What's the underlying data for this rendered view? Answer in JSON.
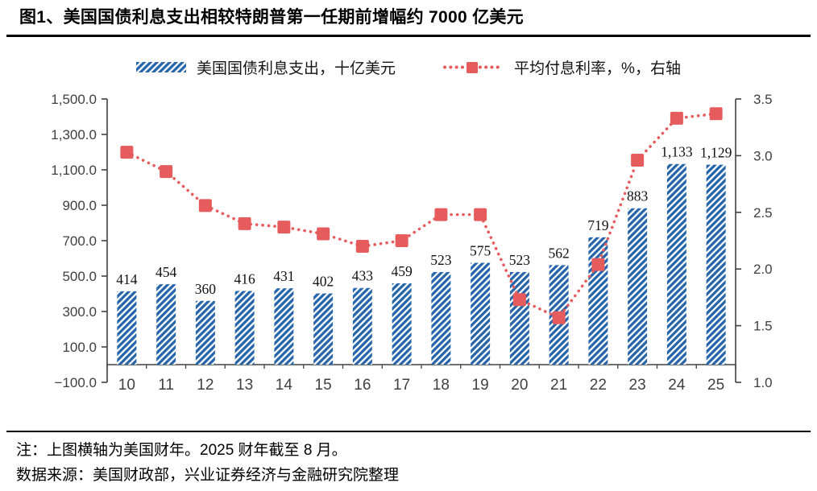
{
  "header": {
    "title": "图1、美国国债利息支出相较特朗普第一任期前增幅约 7000 亿美元"
  },
  "legend": {
    "bar_label": "美国国债利息支出，十亿美元",
    "line_label": "平均付息利率，%，右轴"
  },
  "chart_data": {
    "type": "bar+line combo, dual y-axis",
    "title": "图1、美国国债利息支出相较特朗普第一任期前增幅约 7000 亿美元",
    "x_axis_meaning": "美国财年",
    "categories": [
      "10",
      "11",
      "12",
      "13",
      "14",
      "15",
      "16",
      "17",
      "18",
      "19",
      "20",
      "21",
      "22",
      "23",
      "24",
      "25"
    ],
    "series": [
      {
        "name": "美国国债利息支出，十亿美元",
        "type": "bar",
        "axis": "left",
        "values": [
          414,
          454,
          360,
          416,
          431,
          402,
          433,
          459,
          523,
          575,
          523,
          562,
          719,
          883,
          1133,
          1129
        ],
        "value_labels": [
          "414",
          "454",
          "360",
          "416",
          "431",
          "402",
          "433",
          "459",
          "523",
          "575",
          "523",
          "562",
          "719",
          "883",
          "1,133",
          "1,129"
        ]
      },
      {
        "name": "平均付息利率，%，右轴",
        "type": "line",
        "axis": "right",
        "line_style": "dotted",
        "marker": "square",
        "values": [
          3.03,
          2.86,
          2.56,
          2.4,
          2.37,
          2.31,
          2.2,
          2.25,
          2.48,
          2.48,
          1.73,
          1.57,
          2.04,
          2.96,
          3.33,
          3.37
        ]
      }
    ],
    "left_axis": {
      "min": -100,
      "max": 1500,
      "step": 200,
      "tick_labels": [
        "−100.0",
        "100.0",
        "300.0",
        "500.0",
        "700.0",
        "900.0",
        "1,100.0",
        "1,300.0",
        "1,500.0"
      ]
    },
    "right_axis": {
      "min": 1.0,
      "max": 3.5,
      "step": 0.5,
      "tick_labels": [
        "1.0",
        "1.5",
        "2.0",
        "2.5",
        "3.0",
        "3.5"
      ]
    },
    "grid": "off",
    "legend_position": "top"
  },
  "footer": {
    "note": "注：上图横轴为美国财年。2025 财年截至 8 月。",
    "source": "数据来源：美国财政部，兴业证券经济与金融研究院整理"
  },
  "colors": {
    "bar_blue": "#2766ab",
    "line_red": "#e65c5c",
    "axis_gray": "#404040",
    "text_black": "#000000"
  }
}
